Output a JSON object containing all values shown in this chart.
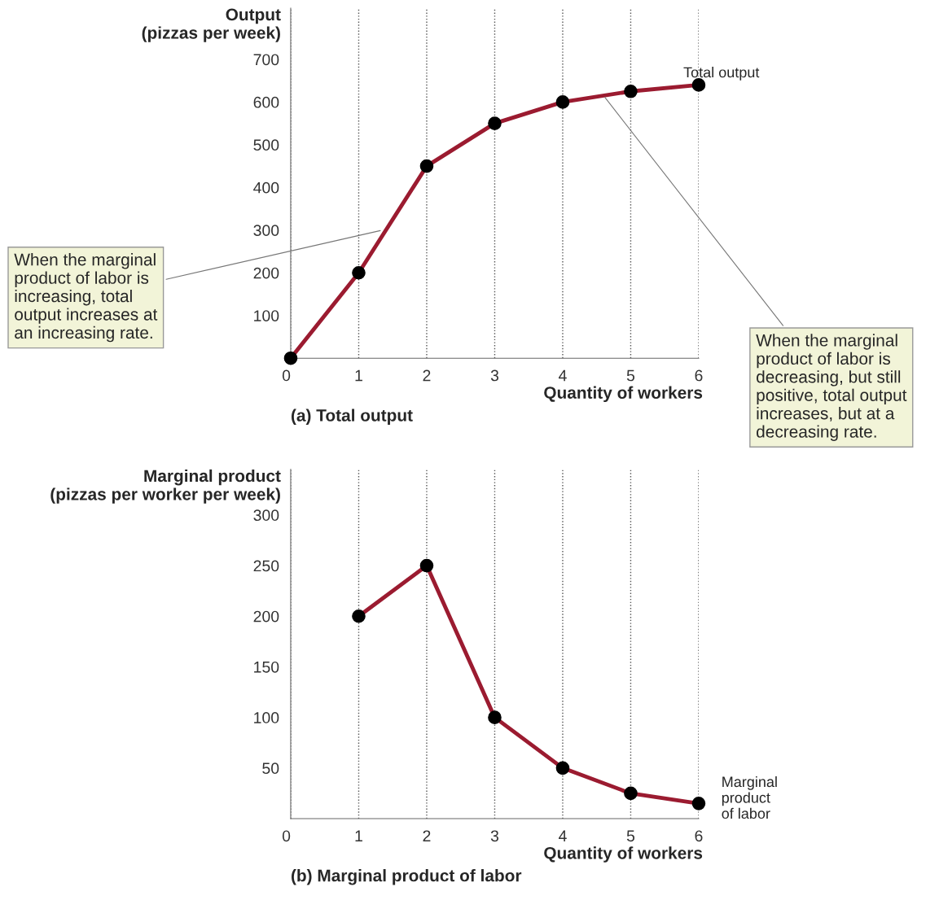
{
  "chart_data": [
    {
      "type": "line",
      "title": "(a) Total output",
      "xlabel": "Quantity of workers",
      "ylabel": "Output\n(pizzas per week)",
      "x": [
        0,
        1,
        2,
        3,
        4,
        5,
        6
      ],
      "series": [
        {
          "name": "Total output",
          "color": "#9b1b30",
          "values": [
            0,
            200,
            450,
            550,
            600,
            625,
            640
          ]
        }
      ],
      "xlim": [
        0,
        6
      ],
      "xticks": [
        0,
        1,
        2,
        3,
        4,
        5,
        6
      ],
      "ylim": [
        0,
        820
      ],
      "yticks": [
        100,
        200,
        300,
        400,
        500,
        600,
        700
      ],
      "grid": "x",
      "marker": "circle",
      "line_style": "solid",
      "annotations": [
        {
          "text": "When the marginal\nproduct of labor is\nincreasing, total\noutput increases at\nan increasing rate.",
          "x": 1.35,
          "y": 300
        },
        {
          "text": "When the marginal\nproduct of labor is\ndecreasing, but still\npositive, total output\nincreases, but at a\ndecreasing rate.",
          "x": 4.6,
          "y": 615
        }
      ]
    },
    {
      "type": "line",
      "title": "(b) Marginal product of labor",
      "xlabel": "Quantity of workers",
      "ylabel": "Marginal product\n(pizzas per worker per week)",
      "x": [
        1,
        2,
        3,
        4,
        5,
        6
      ],
      "series": [
        {
          "name": "Marginal\nproduct\nof labor",
          "color": "#9b1b30",
          "values": [
            200,
            250,
            100,
            50,
            25,
            15
          ]
        }
      ],
      "xlim": [
        0,
        6
      ],
      "xticks": [
        0,
        1,
        2,
        3,
        4,
        5,
        6
      ],
      "ylim": [
        0,
        345
      ],
      "yticks": [
        50,
        100,
        150,
        200,
        250,
        300
      ],
      "grid": "x",
      "marker": "circle",
      "line_style": "solid"
    }
  ]
}
